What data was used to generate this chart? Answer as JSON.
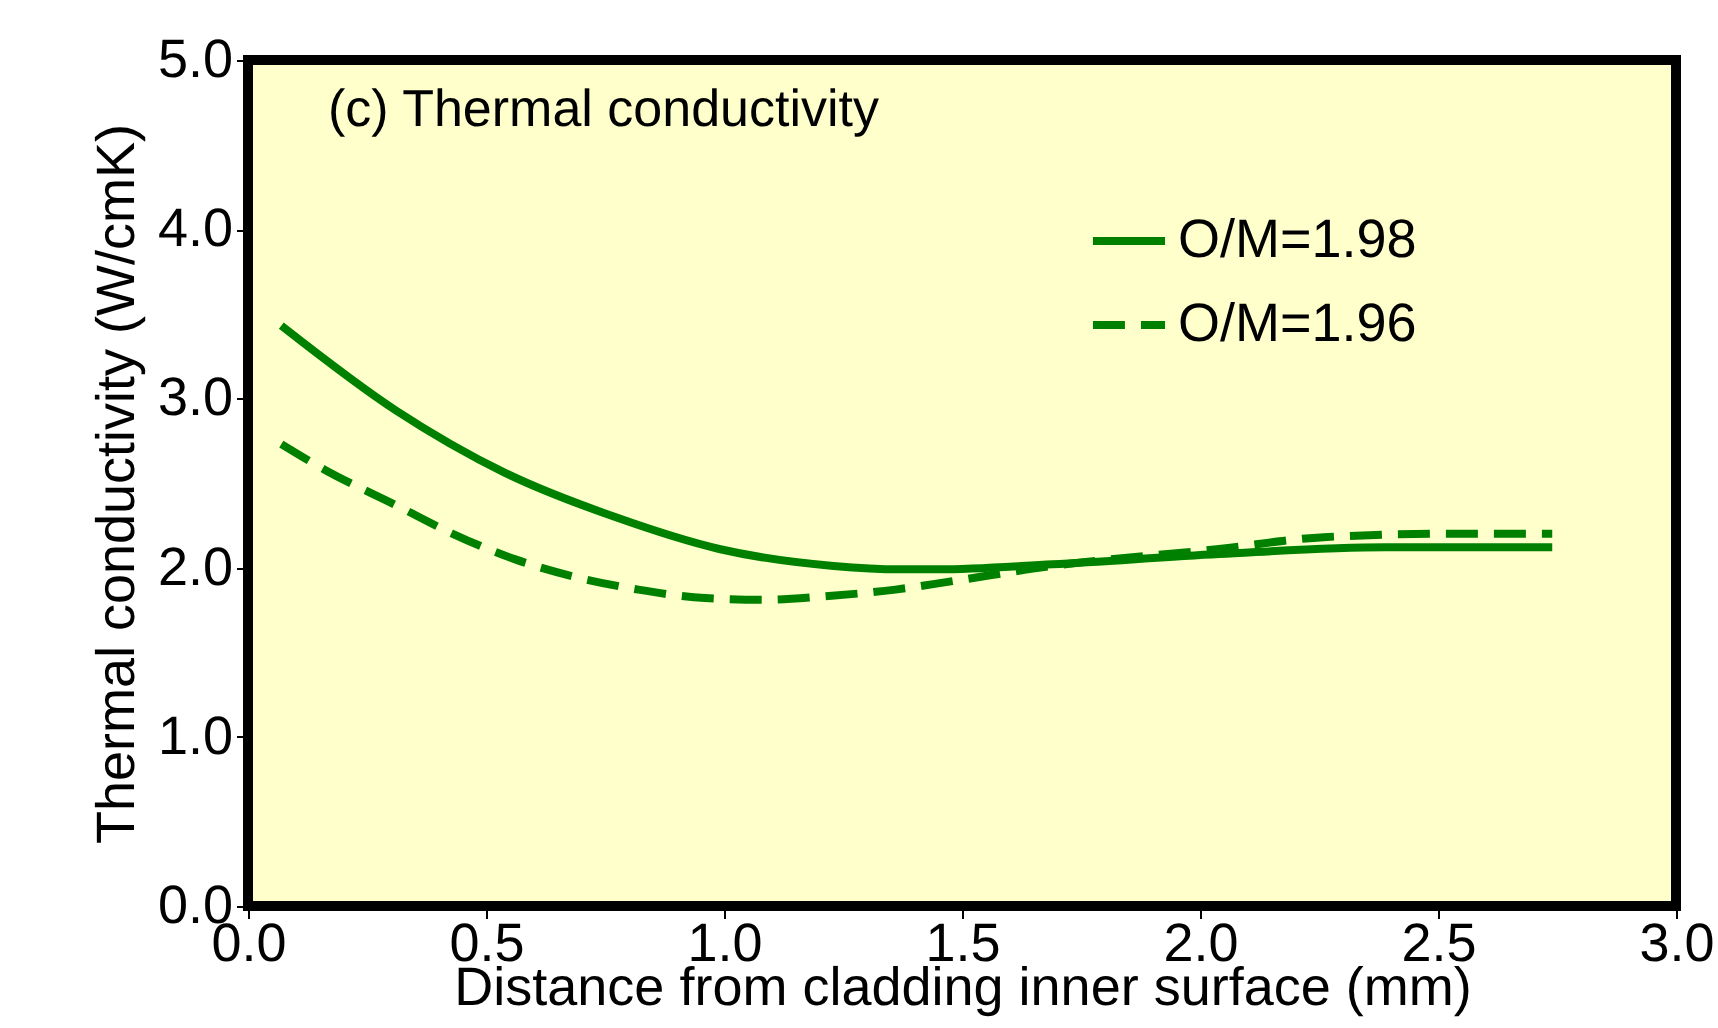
{
  "chart_data": {
    "type": "line",
    "title": "(c) Thermal conductivity",
    "xlabel": "Distance from cladding inner surface (mm)",
    "ylabel": "Thermal conductivity (W/cmK)",
    "xlim": [
      0,
      3
    ],
    "xticks": [
      {
        "value": 0,
        "label": "0.0"
      },
      {
        "value": 0.5,
        "label": "0.5"
      },
      {
        "value": 1,
        "label": "1.0"
      },
      {
        "value": 1.5,
        "label": "1.5"
      },
      {
        "value": 2,
        "label": "2.0"
      },
      {
        "value": 2.5,
        "label": "2.5"
      },
      {
        "value": 3,
        "label": "3.0"
      }
    ],
    "ylim": [
      0,
      5
    ],
    "yticks": [
      {
        "value": 0,
        "label": "0.0"
      },
      {
        "value": 1,
        "label": "1.0"
      },
      {
        "value": 2,
        "label": "2.0"
      },
      {
        "value": 3,
        "label": "3.0"
      },
      {
        "value": 4,
        "label": "4.0"
      },
      {
        "value": 5,
        "label": "5.0"
      }
    ],
    "grid": false,
    "legend": "top right",
    "marker": "none",
    "series": [
      {
        "name": "O/M=1.98",
        "color": "#008000",
        "line_style": "solid",
        "x": [
          0.07,
          0.31,
          0.54,
          0.77,
          0.99,
          1.23,
          1.37,
          1.45,
          1.69,
          2.04,
          2.39,
          2.74
        ],
        "values": [
          3.43,
          2.93,
          2.56,
          2.3,
          2.11,
          2.01,
          1.99,
          1.99,
          2.02,
          2.08,
          2.12,
          2.12
        ]
      },
      {
        "name": "O/M=1.96",
        "color": "#008000",
        "line_style": "dashed",
        "x": [
          0.07,
          0.16,
          0.31,
          0.43,
          0.56,
          0.68,
          0.82,
          0.96,
          1.09,
          1.21,
          1.36,
          1.48,
          1.69,
          2.04,
          2.26,
          2.53,
          2.74
        ],
        "values": [
          2.73,
          2.58,
          2.37,
          2.2,
          2.05,
          1.95,
          1.87,
          1.82,
          1.81,
          1.83,
          1.87,
          1.92,
          2.01,
          2.11,
          2.18,
          2.2,
          2.2
        ]
      }
    ]
  }
}
